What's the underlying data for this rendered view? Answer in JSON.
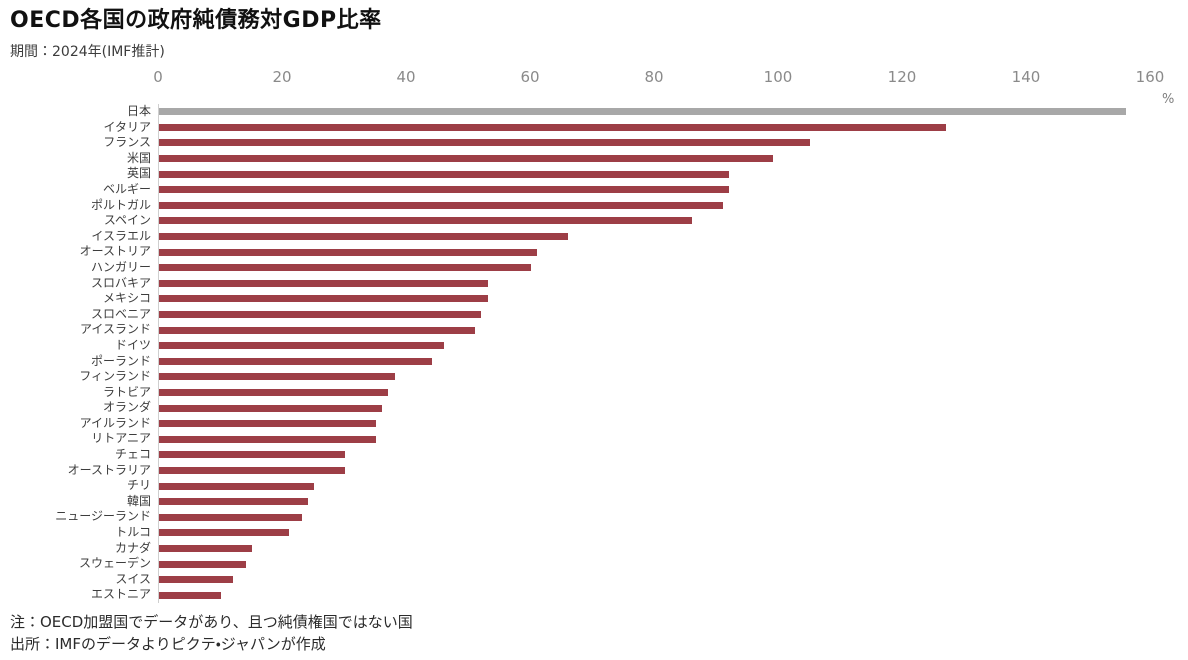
{
  "header": {
    "title": "OECD各国の政府純債務対GDP比率",
    "subtitle": "期間：2024年(IMF推計)"
  },
  "footer": {
    "note": "注：OECD加盟国でデータがあり、且つ純債権国ではない国",
    "source": "出所：IMFのデータよりピクテ・ジャパンが作成"
  },
  "colors": {
    "bar": "#9d3e46",
    "highlight_bar": "#a8a8a8",
    "axis_line": "#cfcfcf",
    "tick_text": "#8a8a8a",
    "label_text": "#3d3d3d"
  },
  "chart_data": {
    "type": "bar",
    "orientation": "horizontal",
    "title": "OECD各国の政府純債務対GDP比率",
    "subtitle": "期間：2024年(IMF推計)",
    "unit": "%",
    "xlabel": "%",
    "ylabel": "",
    "xlim": [
      0,
      160
    ],
    "xticks": [
      0,
      20,
      40,
      60,
      80,
      100,
      120,
      140,
      160
    ],
    "grid": false,
    "legend": "none",
    "highlight_category": "日本",
    "highlight_note": "日本のみ灰色のバー、他は赤系のバー",
    "categories": [
      "日本",
      "イタリア",
      "フランス",
      "米国",
      "英国",
      "ベルギー",
      "ポルトガル",
      "スペイン",
      "イスラエル",
      "オーストリア",
      "ハンガリー",
      "スロバキア",
      "メキシコ",
      "スロベニア",
      "アイスランド",
      "ドイツ",
      "ポーランド",
      "フィンランド",
      "ラトビア",
      "オランダ",
      "アイルランド",
      "リトアニア",
      "チェコ",
      "オーストラリア",
      "チリ",
      "韓国",
      "ニュージーランド",
      "トルコ",
      "カナダ",
      "スウェーデン",
      "スイス",
      "エストニア"
    ],
    "values": [
      156,
      127,
      105,
      99,
      92,
      92,
      91,
      86,
      66,
      61,
      60,
      53,
      53,
      52,
      51,
      46,
      44,
      38,
      37,
      36,
      35,
      35,
      30,
      30,
      25,
      24,
      23,
      21,
      15,
      14,
      12,
      10
    ]
  }
}
